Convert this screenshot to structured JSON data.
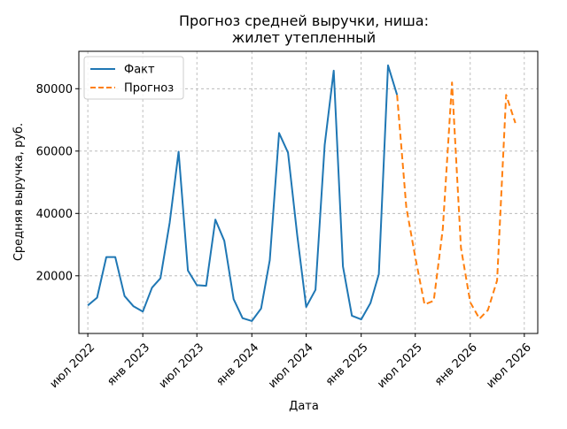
{
  "chart_data": {
    "type": "line",
    "title": "Прогноз средней выручки, ниша:\nжилет утепленный",
    "title_lines": [
      "Прогноз средней выручки, ниша:",
      "жилет утепленный"
    ],
    "xlabel": "Дата",
    "ylabel": "Средняя выручка, руб.",
    "x_axis_type": "date",
    "xlim": [
      "2022-06-01",
      "2026-08-15"
    ],
    "ylim": [
      1500,
      92000
    ],
    "x_ticks": [
      {
        "date": "2022-07-01",
        "label": "июл 2022"
      },
      {
        "date": "2023-01-01",
        "label": "янв 2023"
      },
      {
        "date": "2023-07-01",
        "label": "июл 2023"
      },
      {
        "date": "2024-01-01",
        "label": "янв 2024"
      },
      {
        "date": "2024-07-01",
        "label": "июл 2024"
      },
      {
        "date": "2025-01-01",
        "label": "янв 2025"
      },
      {
        "date": "2025-07-01",
        "label": "июл 2025"
      },
      {
        "date": "2026-01-01",
        "label": "янв 2026"
      },
      {
        "date": "2026-07-01",
        "label": "июл 2026"
      }
    ],
    "y_ticks": [
      {
        "value": 20000,
        "label": "20000"
      },
      {
        "value": 40000,
        "label": "40000"
      },
      {
        "value": 60000,
        "label": "60000"
      },
      {
        "value": 80000,
        "label": "80000"
      }
    ],
    "grid": true,
    "legend_position": "top-left",
    "series": [
      {
        "name": "Факт",
        "color": "#1f77b4",
        "dash": "solid",
        "points": [
          [
            "2022-07-01",
            10500
          ],
          [
            "2022-08-01",
            13000
          ],
          [
            "2022-09-01",
            26000
          ],
          [
            "2022-10-01",
            26000
          ],
          [
            "2022-11-01",
            13500
          ],
          [
            "2022-12-01",
            10200
          ],
          [
            "2023-01-01",
            8500
          ],
          [
            "2023-02-01",
            16200
          ],
          [
            "2023-03-01",
            19200
          ],
          [
            "2023-04-01",
            37000
          ],
          [
            "2023-05-01",
            59800
          ],
          [
            "2023-06-01",
            21700
          ],
          [
            "2023-07-01",
            17000
          ],
          [
            "2023-08-01",
            16800
          ],
          [
            "2023-09-01",
            38000
          ],
          [
            "2023-10-01",
            31200
          ],
          [
            "2023-11-01",
            12500
          ],
          [
            "2023-12-01",
            6400
          ],
          [
            "2024-01-01",
            5500
          ],
          [
            "2024-02-01",
            9500
          ],
          [
            "2024-03-01",
            25000
          ],
          [
            "2024-04-01",
            65800
          ],
          [
            "2024-05-01",
            59500
          ],
          [
            "2024-06-01",
            33000
          ],
          [
            "2024-07-01",
            10000
          ],
          [
            "2024-08-01",
            15500
          ],
          [
            "2024-09-01",
            62000
          ],
          [
            "2024-10-01",
            85800
          ],
          [
            "2024-11-01",
            23000
          ],
          [
            "2024-12-01",
            7200
          ],
          [
            "2025-01-01",
            6000
          ],
          [
            "2025-02-01",
            11200
          ],
          [
            "2025-03-01",
            20500
          ],
          [
            "2025-04-01",
            87500
          ],
          [
            "2025-05-01",
            78000
          ]
        ]
      },
      {
        "name": "Прогноз",
        "color": "#ff7f0e",
        "dash": "dashed",
        "points": [
          [
            "2025-05-01",
            78000
          ],
          [
            "2025-06-01",
            42000
          ],
          [
            "2025-07-01",
            26000
          ],
          [
            "2025-08-01",
            10800
          ],
          [
            "2025-09-01",
            12000
          ],
          [
            "2025-10-01",
            35000
          ],
          [
            "2025-11-01",
            82000
          ],
          [
            "2025-12-01",
            29000
          ],
          [
            "2026-01-01",
            11500
          ],
          [
            "2026-02-01",
            6200
          ],
          [
            "2026-03-01",
            9000
          ],
          [
            "2026-04-01",
            18500
          ],
          [
            "2026-05-01",
            78000
          ],
          [
            "2026-06-01",
            69000
          ]
        ]
      }
    ]
  }
}
